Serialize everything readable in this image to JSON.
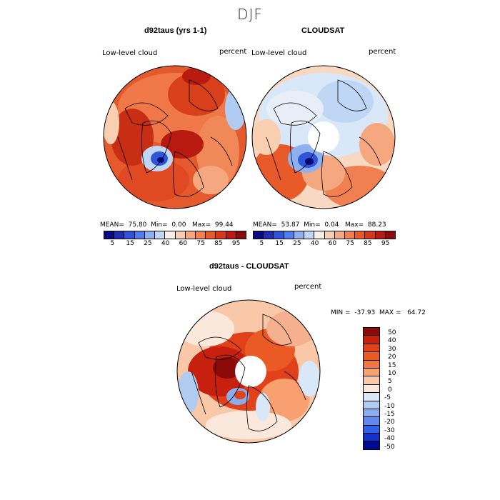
{
  "season_title": "DJF",
  "panels": {
    "model": {
      "title": "d92taus (yrs 1-1)",
      "variable_label": "Low-level cloud",
      "units_label": "percent",
      "mean_label": "MEAN=",
      "mean_value": "75.80",
      "min_label": "Min=",
      "min_value": "0.00",
      "max_label": "Max=",
      "max_value": "99.44"
    },
    "obs": {
      "title": "CLOUDSAT",
      "variable_label": "Low-level cloud",
      "units_label": "percent",
      "mean_label": "MEAN=",
      "mean_value": "53.87",
      "min_label": "Min=",
      "min_value": "0.04",
      "max_label": "Max=",
      "max_value": "88.23"
    },
    "diff": {
      "title": "d92taus - CLOUDSAT",
      "variable_label": "Low-level cloud",
      "units_label": "percent",
      "minmax_text": "MIN =  -37.93  MAX =   64.72"
    }
  },
  "abs_colorbar": {
    "colors": [
      "#0a0a80",
      "#1f2fb0",
      "#2f55d8",
      "#4f7ef0",
      "#8fb0f0",
      "#c0d6f5",
      "#f8f0e8",
      "#f8cfb0",
      "#f5a880",
      "#f08050",
      "#e85a2a",
      "#d8381a",
      "#b81a10",
      "#8c0a0a"
    ],
    "tick_labels": [
      "5",
      "15",
      "25",
      "40",
      "60",
      "75",
      "85",
      "95"
    ]
  },
  "diff_colorbar": {
    "colors": [
      "#8c0a0a",
      "#c8200e",
      "#e0401a",
      "#ea5a25",
      "#f07840",
      "#f8a070",
      "#f8c8a8",
      "#fbe8dc",
      "#d8e8f8",
      "#b0ccf0",
      "#88aef0",
      "#5f88f0",
      "#3060e8",
      "#1030d0",
      "#000a90"
    ],
    "tick_labels": [
      "50",
      "40",
      "30",
      "20",
      "15",
      "10",
      "5",
      "0",
      "-5",
      "-10",
      "-15",
      "-20",
      "-30",
      "-40",
      "-50"
    ]
  },
  "colors": {
    "land_outline": "#000000",
    "missing": "#ffffff"
  }
}
